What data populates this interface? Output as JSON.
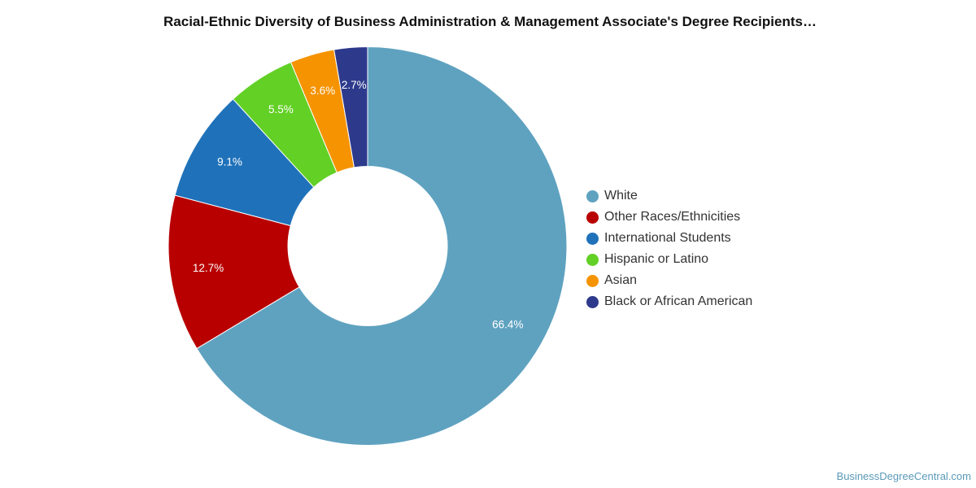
{
  "title": "Racial-Ethnic Diversity of Business Administration & Management Associate's Degree Recipients…",
  "source_credit": "BusinessDegreeCentral.com",
  "chart_data": {
    "type": "pie",
    "donut": true,
    "title": "Racial-Ethnic Diversity of Business Administration & Management Associate's Degree Recipients…",
    "legend_position": "right",
    "slices": [
      {
        "label": "White",
        "value": 66.4,
        "display": "66.4%",
        "color": "#5fa2c0"
      },
      {
        "label": "Other Races/Ethnicities",
        "value": 12.7,
        "display": "12.7%",
        "color": "#b80000"
      },
      {
        "label": "International Students",
        "value": 9.1,
        "display": "9.1%",
        "color": "#1f72ba"
      },
      {
        "label": "Hispanic or Latino",
        "value": 5.5,
        "display": "5.5%",
        "color": "#63d025"
      },
      {
        "label": "Asian",
        "value": 3.6,
        "display": "3.6%",
        "color": "#f59300"
      },
      {
        "label": "Black or African American",
        "value": 2.7,
        "display": "2.7%",
        "color": "#2d3a8c"
      }
    ]
  }
}
